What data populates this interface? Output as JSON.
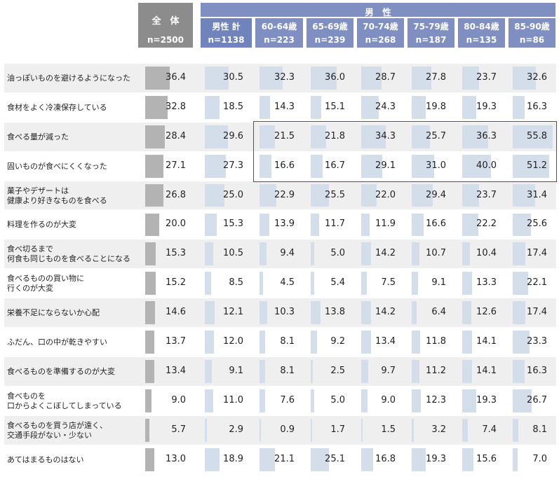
{
  "header": {
    "total_label": "全　体",
    "male_label": "男　性",
    "total_n": "n=2500",
    "columns": [
      {
        "label": "男性 計",
        "n": "n=1138"
      },
      {
        "label": "60-64歳",
        "n": "n=223"
      },
      {
        "label": "65-69歳",
        "n": "n=239"
      },
      {
        "label": "70-74歳",
        "n": "n=268"
      },
      {
        "label": "75-79歳",
        "n": "n=187"
      },
      {
        "label": "80-84歳",
        "n": "n=135"
      },
      {
        "label": "85-90歳",
        "n": "n=86"
      }
    ]
  },
  "colors": {
    "total_bar": "#b3b3b3",
    "male_bar": "#d4deeb",
    "row_band": "#efefef",
    "header_gray": "#8c8c8c",
    "header_blue": "#7f8fc2",
    "highlight_border": "#c0212b"
  },
  "chart_data": {
    "type": "table",
    "max_value": 60,
    "highlight": {
      "rows": [
        "食べる量が減った",
        "固いものが食べにくくなった"
      ],
      "columns": [
        "60-64歳",
        "65-69歳",
        "70-74歳",
        "75-79歳",
        "80-84歳",
        "85-90歳"
      ]
    },
    "rows": [
      {
        "label": [
          "油っぽいものを避けるようになった"
        ],
        "total": "36.4",
        "values": [
          "30.5",
          "32.3",
          "36.0",
          "28.7",
          "27.8",
          "23.7",
          "32.6"
        ]
      },
      {
        "label": [
          "食材をよく冷凍保存している"
        ],
        "total": "32.8",
        "values": [
          "18.5",
          "14.3",
          "15.1",
          "24.3",
          "19.8",
          "19.3",
          "16.3"
        ]
      },
      {
        "label": [
          "食べる量が減った"
        ],
        "total": "28.4",
        "values": [
          "29.6",
          "21.5",
          "21.8",
          "34.3",
          "25.7",
          "36.3",
          "55.8"
        ]
      },
      {
        "label": [
          "固いものが食べにくくなった"
        ],
        "total": "27.1",
        "values": [
          "27.3",
          "16.6",
          "16.7",
          "29.1",
          "31.0",
          "40.0",
          "51.2"
        ]
      },
      {
        "label": [
          "菓子やデザートは",
          "健康より好きなものを食べる"
        ],
        "total": "26.8",
        "values": [
          "25.0",
          "22.9",
          "25.5",
          "22.0",
          "29.4",
          "23.7",
          "31.4"
        ]
      },
      {
        "label": [
          "料理を作るのが大変"
        ],
        "total": "20.0",
        "values": [
          "15.3",
          "13.9",
          "11.7",
          "11.9",
          "16.6",
          "22.2",
          "25.6"
        ]
      },
      {
        "label": [
          "食べ切るまで",
          "何食も同じものを食べることになる"
        ],
        "total": "15.3",
        "values": [
          "10.5",
          "9.4",
          "5.0",
          "14.2",
          "10.7",
          "10.4",
          "17.4"
        ]
      },
      {
        "label": [
          "食べるものの買い物に",
          "行くのが大変"
        ],
        "total": "15.2",
        "values": [
          "8.5",
          "4.5",
          "5.4",
          "7.5",
          "9.1",
          "13.3",
          "22.1"
        ]
      },
      {
        "label": [
          "栄養不足にならないか心配"
        ],
        "total": "14.6",
        "values": [
          "12.1",
          "10.3",
          "13.8",
          "14.2",
          "6.4",
          "12.6",
          "17.4"
        ]
      },
      {
        "label": [
          "ふだん、口の中が乾きやすい"
        ],
        "total": "13.7",
        "values": [
          "12.0",
          "8.1",
          "9.2",
          "13.4",
          "11.8",
          "14.1",
          "23.3"
        ]
      },
      {
        "label": [
          "食べるものを準備するのが大変"
        ],
        "total": "13.4",
        "values": [
          "9.1",
          "8.1",
          "2.5",
          "9.7",
          "11.2",
          "14.1",
          "16.3"
        ]
      },
      {
        "label": [
          "食べものを",
          "口からよくこぼしてしまっている"
        ],
        "total": "9.0",
        "values": [
          "11.0",
          "7.6",
          "5.0",
          "9.0",
          "12.3",
          "19.3",
          "26.7"
        ]
      },
      {
        "label": [
          "食べるものを買う店が遠く、",
          "交通手段がない・少ない"
        ],
        "total": "5.7",
        "values": [
          "2.9",
          "0.9",
          "1.7",
          "1.5",
          "3.2",
          "7.4",
          "8.1"
        ]
      },
      {
        "label": [
          "あてはまるものはない"
        ],
        "total": "13.0",
        "values": [
          "18.9",
          "21.1",
          "25.1",
          "16.8",
          "19.3",
          "15.6",
          "7.0"
        ]
      }
    ]
  }
}
